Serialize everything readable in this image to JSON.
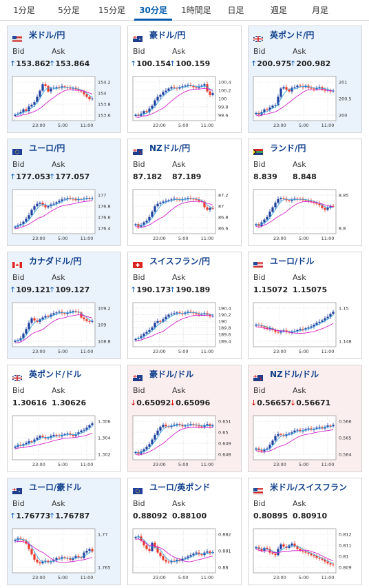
{
  "tabs": [
    {
      "label": "1分足",
      "active": false
    },
    {
      "label": "5分足",
      "active": false
    },
    {
      "label": "15分足",
      "active": false
    },
    {
      "label": "30分足",
      "active": true
    },
    {
      "label": "1時間足",
      "active": false
    },
    {
      "label": "日足",
      "active": false
    },
    {
      "label": "週足",
      "active": false
    },
    {
      "label": "月足",
      "active": false
    }
  ],
  "colors": {
    "up": "#0a58b8",
    "down": "#dd0000",
    "candle_up": "#1f3f9f",
    "candle_down": "#e8392b",
    "ma_fast": "#38a8e0",
    "ma_slow": "#d51ec9"
  },
  "bid_label": "Bid",
  "ask_label": "Ask",
  "x_labels": [
    "23:00",
    "5:00",
    "11:00"
  ],
  "cards": [
    {
      "name": "米ドル/円",
      "flag": "us",
      "bid": "153.862",
      "ask": "153.864",
      "dir": "up",
      "bg": "blue",
      "yticks": [
        "154.2",
        "154",
        "153.8",
        "153.6"
      ],
      "chart_data": {
        "type": "candlestick",
        "ylim": [
          153.5,
          154.3
        ],
        "open": 153.62,
        "high": 154.25,
        "close": 153.84,
        "path": [
          0.05,
          0.08,
          0.12,
          0.2,
          0.15,
          0.28,
          0.33,
          0.4,
          0.55,
          0.72,
          0.9,
          0.85,
          0.7,
          0.78,
          0.8,
          0.82,
          0.8,
          0.84,
          0.82,
          0.8,
          0.78,
          0.8,
          0.76,
          0.72,
          0.7,
          0.62,
          0.55,
          0.48,
          0.5
        ]
      }
    },
    {
      "name": "豪ドル/円",
      "flag": "au",
      "bid": "100.154",
      "ask": "100.159",
      "dir": "up",
      "bg": "white",
      "yticks": [
        "100.4",
        "100.2",
        "100",
        "99.8",
        "99.6"
      ],
      "chart_data": {
        "type": "candlestick",
        "ylim": [
          99.5,
          100.45
        ],
        "open": 99.6,
        "high": 100.38,
        "close": 100.15,
        "path": [
          0.05,
          0.02,
          0.08,
          0.15,
          0.12,
          0.22,
          0.3,
          0.45,
          0.55,
          0.6,
          0.68,
          0.72,
          0.78,
          0.82,
          0.8,
          0.78,
          0.82,
          0.84,
          0.86,
          0.88,
          0.86,
          0.82,
          0.8,
          0.84,
          0.86,
          0.9,
          0.7,
          0.6,
          0.65
        ]
      }
    },
    {
      "name": "英ポンド/円",
      "flag": "gb",
      "bid": "200.975",
      "ask": "200.982",
      "dir": "up",
      "bg": "blue",
      "yticks": [
        "201",
        "200.5",
        "200"
      ],
      "chart_data": {
        "type": "candlestick",
        "ylim": [
          199.85,
          201.25
        ],
        "open": 200.05,
        "high": 201.2,
        "close": 200.98,
        "path": [
          0.1,
          0.05,
          0.12,
          0.2,
          0.18,
          0.25,
          0.3,
          0.32,
          0.55,
          0.78,
          0.82,
          0.75,
          0.7,
          0.8,
          0.82,
          0.86,
          0.84,
          0.82,
          0.86,
          0.8,
          0.78,
          0.76,
          0.8,
          0.82,
          0.76,
          0.72,
          0.74,
          0.7,
          0.72
        ]
      }
    },
    {
      "name": "ユーロ/円",
      "flag": "eu",
      "bid": "177.053",
      "ask": "177.057",
      "dir": "up",
      "bg": "blue",
      "yticks": [
        "177",
        "176.8",
        "176.6",
        "176.4"
      ],
      "chart_data": {
        "type": "candlestick",
        "ylim": [
          176.3,
          177.15
        ],
        "open": 176.4,
        "high": 177.1,
        "close": 177.05,
        "path": [
          0.08,
          0.12,
          0.15,
          0.22,
          0.3,
          0.4,
          0.55,
          0.65,
          0.72,
          0.75,
          0.68,
          0.62,
          0.65,
          0.7,
          0.72,
          0.76,
          0.8,
          0.84,
          0.86,
          0.88,
          0.86,
          0.85,
          0.82,
          0.85,
          0.84,
          0.86,
          0.88,
          0.85,
          0.87
        ]
      }
    },
    {
      "name": "NZドル/円",
      "flag": "nz",
      "bid": "87.182",
      "ask": "87.189",
      "dir": "none",
      "bg": "white",
      "yticks": [
        "87.2",
        "87",
        "86.8",
        "86.6"
      ],
      "chart_data": {
        "type": "candlestick",
        "ylim": [
          86.55,
          87.3
        ],
        "open": 86.7,
        "high": 87.25,
        "close": 87.18,
        "path": [
          0.15,
          0.08,
          0.12,
          0.2,
          0.25,
          0.35,
          0.5,
          0.65,
          0.72,
          0.75,
          0.78,
          0.8,
          0.82,
          0.84,
          0.86,
          0.84,
          0.82,
          0.84,
          0.86,
          0.88,
          0.86,
          0.85,
          0.84,
          0.8,
          0.78,
          0.62,
          0.55,
          0.6,
          0.58
        ]
      }
    },
    {
      "name": "ランド/円",
      "flag": "za",
      "bid": "8.839",
      "ask": "8.848",
      "dir": "none",
      "bg": "white",
      "yticks": [
        "8.85",
        "8.8"
      ],
      "chart_data": {
        "type": "candlestick",
        "ylim": [
          8.76,
          8.88
        ],
        "open": 8.77,
        "high": 8.875,
        "close": 8.84,
        "path": [
          0.15,
          0.1,
          0.2,
          0.28,
          0.35,
          0.5,
          0.62,
          0.75,
          0.85,
          0.88,
          0.86,
          0.82,
          0.8,
          0.84,
          0.86,
          0.85,
          0.84,
          0.83,
          0.82,
          0.8,
          0.78,
          0.75,
          0.72,
          0.68,
          0.6,
          0.55,
          0.62,
          0.66,
          0.64
        ]
      }
    },
    {
      "name": "カナダドル/円",
      "flag": "ca",
      "bid": "109.121",
      "ask": "109.127",
      "dir": "up",
      "bg": "blue",
      "yticks": [
        "109.2",
        "109",
        "108.8"
      ],
      "chart_data": {
        "type": "candlestick",
        "ylim": [
          108.6,
          109.35
        ],
        "open": 108.7,
        "high": 109.32,
        "close": 109.12,
        "path": [
          0.05,
          0.06,
          0.12,
          0.25,
          0.38,
          0.55,
          0.68,
          0.62,
          0.58,
          0.65,
          0.7,
          0.74,
          0.72,
          0.78,
          0.82,
          0.84,
          0.86,
          0.82,
          0.8,
          0.84,
          0.86,
          0.88,
          0.86,
          0.84,
          0.7,
          0.65,
          0.6,
          0.58,
          0.6
        ]
      }
    },
    {
      "name": "スイスフラン/円",
      "flag": "ch",
      "bid": "190.173",
      "ask": "190.189",
      "dir": "up",
      "bg": "white",
      "yticks": [
        "190.4",
        "190.2",
        "190",
        "189.8",
        "189.6",
        "189.4"
      ],
      "chart_data": {
        "type": "candlestick",
        "ylim": [
          189.35,
          190.45
        ],
        "open": 189.5,
        "high": 190.42,
        "close": 190.18,
        "path": [
          0.1,
          0.12,
          0.18,
          0.25,
          0.3,
          0.35,
          0.42,
          0.55,
          0.6,
          0.58,
          0.65,
          0.72,
          0.78,
          0.8,
          0.82,
          0.84,
          0.82,
          0.8,
          0.84,
          0.86,
          0.85,
          0.82,
          0.8,
          0.78,
          0.8,
          0.82,
          0.78,
          0.74,
          0.75
        ]
      }
    },
    {
      "name": "ユーロ/ドル",
      "flag": "us",
      "bid": "1.15072",
      "ask": "1.15075",
      "dir": "none",
      "bg": "white",
      "yticks": [
        "1.15",
        "1.148"
      ],
      "chart_data": {
        "type": "candlestick",
        "ylim": [
          1.1465,
          1.1515
        ],
        "open": 1.1488,
        "high": 1.1512,
        "close": 1.1507,
        "path": [
          0.5,
          0.48,
          0.45,
          0.42,
          0.38,
          0.4,
          0.35,
          0.3,
          0.28,
          0.32,
          0.34,
          0.3,
          0.28,
          0.3,
          0.32,
          0.35,
          0.38,
          0.36,
          0.4,
          0.42,
          0.45,
          0.5,
          0.55,
          0.58,
          0.62,
          0.68,
          0.72,
          0.8,
          0.86
        ]
      }
    },
    {
      "name": "英ポンド/ドル",
      "flag": "gb",
      "bid": "1.30616",
      "ask": "1.30626",
      "dir": "none",
      "bg": "white",
      "yticks": [
        "1.306",
        "1.304",
        "1.302"
      ],
      "chart_data": {
        "type": "candlestick",
        "ylim": [
          1.3008,
          1.3068
        ],
        "open": 1.3025,
        "high": 1.3066,
        "close": 1.3062,
        "path": [
          0.25,
          0.3,
          0.28,
          0.32,
          0.35,
          0.4,
          0.38,
          0.45,
          0.5,
          0.55,
          0.52,
          0.48,
          0.5,
          0.55,
          0.58,
          0.56,
          0.54,
          0.58,
          0.6,
          0.62,
          0.58,
          0.55,
          0.6,
          0.65,
          0.7,
          0.72,
          0.78,
          0.85,
          0.9
        ]
      }
    },
    {
      "name": "豪ドル/ドル",
      "flag": "au",
      "bid": "0.65092",
      "ask": "0.65096",
      "dir": "down",
      "bg": "pink",
      "yticks": [
        "0.651",
        "0.65",
        "0.649",
        "0.648"
      ],
      "chart_data": {
        "type": "candlestick",
        "ylim": [
          0.6475,
          0.6514
        ],
        "open": 0.648,
        "high": 0.6513,
        "close": 0.6509,
        "path": [
          0.1,
          0.05,
          0.12,
          0.18,
          0.25,
          0.32,
          0.45,
          0.58,
          0.7,
          0.8,
          0.86,
          0.82,
          0.8,
          0.84,
          0.86,
          0.88,
          0.85,
          0.82,
          0.84,
          0.86,
          0.88,
          0.86,
          0.84,
          0.82,
          0.8,
          0.85,
          0.88,
          0.82,
          0.84
        ]
      }
    },
    {
      "name": "NZドル/ドル",
      "flag": "nz",
      "bid": "0.56657",
      "ask": "0.56671",
      "dir": "down",
      "bg": "pink",
      "yticks": [
        "0.566",
        "0.565",
        "0.564"
      ],
      "chart_data": {
        "type": "candlestick",
        "ylim": [
          0.5636,
          0.5669
        ],
        "open": 0.5642,
        "high": 0.5668,
        "close": 0.5666,
        "path": [
          0.2,
          0.15,
          0.12,
          0.18,
          0.2,
          0.3,
          0.42,
          0.55,
          0.6,
          0.58,
          0.55,
          0.6,
          0.62,
          0.65,
          0.7,
          0.72,
          0.68,
          0.7,
          0.74,
          0.76,
          0.72,
          0.75,
          0.78,
          0.8,
          0.76,
          0.8,
          0.84,
          0.82,
          0.86
        ]
      }
    },
    {
      "name": "ユーロ/豪ドル",
      "flag": "au",
      "bid": "1.76773",
      "ask": "1.76787",
      "dir": "up",
      "bg": "blue",
      "yticks": [
        "1.77",
        "1.765"
      ],
      "chart_data": {
        "type": "candlestick",
        "ylim": [
          1.7625,
          1.7735
        ],
        "open": 1.772,
        "high": 1.7732,
        "close": 1.7677,
        "path": [
          0.8,
          0.85,
          0.82,
          0.78,
          0.7,
          0.55,
          0.4,
          0.25,
          0.18,
          0.15,
          0.2,
          0.22,
          0.18,
          0.2,
          0.25,
          0.3,
          0.28,
          0.32,
          0.3,
          0.28,
          0.25,
          0.3,
          0.35,
          0.32,
          0.3,
          0.45,
          0.5,
          0.55,
          0.48
        ]
      }
    },
    {
      "name": "ユーロ/英ポンド",
      "flag": "eu",
      "bid": "0.88092",
      "ask": "0.88100",
      "dir": "none",
      "bg": "white",
      "yticks": [
        "0.882",
        "0.881",
        "0.88"
      ],
      "chart_data": {
        "type": "candlestick",
        "ylim": [
          0.8798,
          0.8823
        ],
        "open": 0.8818,
        "high": 0.8822,
        "close": 0.8809,
        "path": [
          0.88,
          0.9,
          0.78,
          0.65,
          0.55,
          0.5,
          0.72,
          0.6,
          0.45,
          0.35,
          0.25,
          0.2,
          0.18,
          0.22,
          0.2,
          0.25,
          0.22,
          0.28,
          0.3,
          0.34,
          0.38,
          0.42,
          0.45,
          0.4,
          0.38,
          0.45,
          0.48,
          0.44,
          0.46
        ]
      }
    },
    {
      "name": "米ドル/スイスフラン",
      "flag": "us",
      "bid": "0.80895",
      "ask": "0.80910",
      "dir": "none",
      "bg": "white",
      "yticks": [
        "0.812",
        "0.811",
        "0.81",
        "0.809"
      ],
      "chart_data": {
        "type": "candlestick",
        "ylim": [
          0.8086,
          0.8124
        ],
        "open": 0.8115,
        "high": 0.8123,
        "close": 0.809,
        "path": [
          0.6,
          0.55,
          0.5,
          0.58,
          0.55,
          0.45,
          0.42,
          0.38,
          0.55,
          0.68,
          0.62,
          0.58,
          0.65,
          0.7,
          0.62,
          0.55,
          0.5,
          0.48,
          0.45,
          0.42,
          0.38,
          0.35,
          0.3,
          0.28,
          0.25,
          0.2,
          0.15,
          0.12,
          0.1
        ]
      }
    }
  ]
}
